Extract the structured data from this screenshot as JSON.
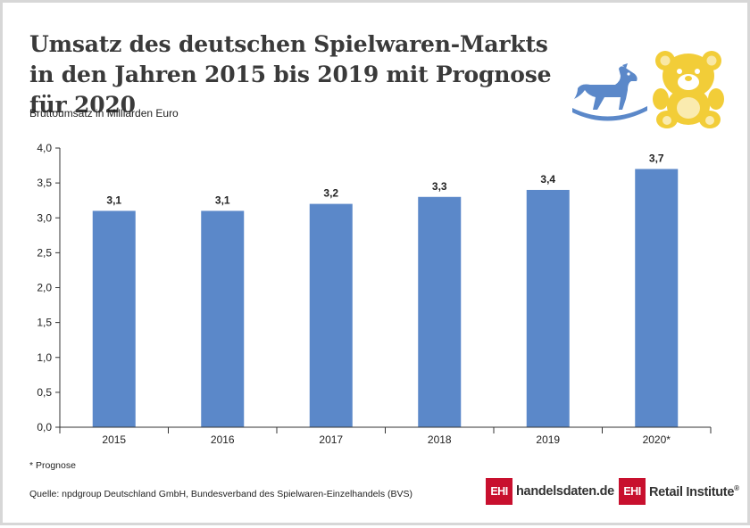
{
  "header": {
    "title": "Umsatz des deutschen Spielwaren-Markts in den Jahren 2015 bis 2019 mit Prognose für 2020",
    "subtitle": "Bruttoumsatz in Milliarden Euro"
  },
  "chart_data": {
    "type": "bar",
    "categories": [
      "2015",
      "2016",
      "2017",
      "2018",
      "2019",
      "2020*"
    ],
    "values": [
      3.1,
      3.1,
      3.2,
      3.3,
      3.4,
      3.7
    ],
    "data_labels": [
      "3,1",
      "3,1",
      "3,2",
      "3,3",
      "3,4",
      "3,7"
    ],
    "ylim": [
      0,
      4.0
    ],
    "yticks": [
      0,
      0.5,
      1.0,
      1.5,
      2.0,
      2.5,
      3.0,
      3.5,
      4.0
    ],
    "ytick_labels": [
      "0,0",
      "0,5",
      "1,0",
      "1,5",
      "2,0",
      "2,5",
      "3,0",
      "3,5",
      "4,0"
    ],
    "ylabel": "Bruttoumsatz in Milliarden Euro",
    "xlabel": "",
    "grid": false,
    "legend": "none",
    "bar_color": "#5b88c9"
  },
  "footer": {
    "footnote": "* Prognose",
    "source": "Quelle: npdgroup Deutschland GmbH, Bundesverband des Spielwaren-Einzelhandels (BVS)"
  },
  "logos": {
    "ehi_mark": "EHI",
    "handelsdaten": "handelsdaten.de",
    "retail_institute": "Retail Institute",
    "registered": "®"
  },
  "illustrations": {
    "horse": "rocking-horse-icon",
    "bear": "teddy-bear-icon",
    "horse_color": "#5b88c9",
    "bear_color": "#f2cd38"
  }
}
